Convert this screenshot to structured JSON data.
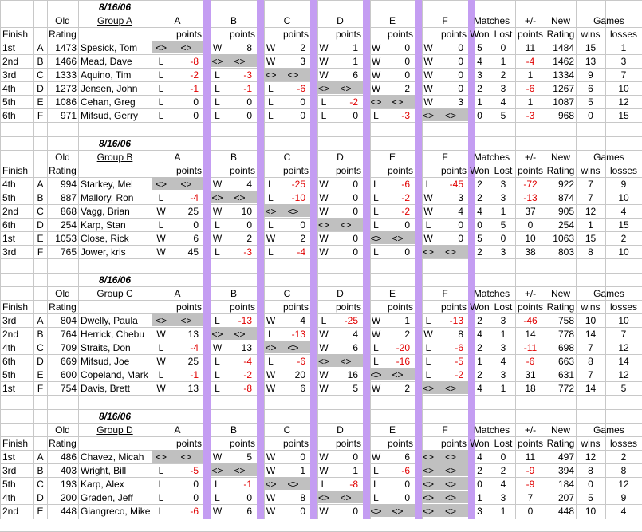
{
  "tables": [
    {
      "date": "8/16/06",
      "group": "Group A",
      "rows": [
        {
          "finish": "1st",
          "seed": "A",
          "rating": "1473",
          "name": "Spesick, Tom",
          "r": [
            "<>",
            "<>",
            "W",
            "8",
            "W",
            "2",
            "W",
            "1",
            "W",
            "0",
            "W",
            "0"
          ],
          "won": "5",
          "lost": "0",
          "pm": "11",
          "newr": "1484",
          "gw": "15",
          "gl": "1"
        },
        {
          "finish": "2nd",
          "seed": "B",
          "rating": "1466",
          "name": "Mead, Dave",
          "r": [
            "L",
            "-8",
            "<>",
            "<>",
            "W",
            "3",
            "W",
            "1",
            "W",
            "0",
            "W",
            "0"
          ],
          "won": "4",
          "lost": "1",
          "pm": "-4",
          "newr": "1462",
          "gw": "13",
          "gl": "3"
        },
        {
          "finish": "3rd",
          "seed": "C",
          "rating": "1333",
          "name": "Aquino, Tim",
          "r": [
            "L",
            "-2",
            "L",
            "-3",
            "<>",
            "<>",
            "W",
            "6",
            "W",
            "0",
            "W",
            "0"
          ],
          "won": "3",
          "lost": "2",
          "pm": "1",
          "newr": "1334",
          "gw": "9",
          "gl": "7"
        },
        {
          "finish": "4th",
          "seed": "D",
          "rating": "1273",
          "name": "Jensen, John",
          "r": [
            "L",
            "-1",
            "L",
            "-1",
            "L",
            "-6",
            "<>",
            "<>",
            "W",
            "2",
            "W",
            "0"
          ],
          "won": "2",
          "lost": "3",
          "pm": "-6",
          "newr": "1267",
          "gw": "6",
          "gl": "10"
        },
        {
          "finish": "5th",
          "seed": "E",
          "rating": "1086",
          "name": "Cehan, Greg",
          "r": [
            "L",
            "0",
            "L",
            "0",
            "L",
            "0",
            "L",
            "-2",
            "<>",
            "<>",
            "W",
            "3"
          ],
          "won": "1",
          "lost": "4",
          "pm": "1",
          "newr": "1087",
          "gw": "5",
          "gl": "12"
        },
        {
          "finish": "6th",
          "seed": "F",
          "rating": "971",
          "name": "Mifsud, Gerry",
          "r": [
            "L",
            "0",
            "L",
            "0",
            "L",
            "0",
            "L",
            "0",
            "L",
            "-3",
            "<>",
            "<>"
          ],
          "won": "0",
          "lost": "5",
          "pm": "-3",
          "newr": "968",
          "gw": "0",
          "gl": "15"
        }
      ]
    },
    {
      "date": "8/16/06",
      "group": "Group B",
      "rows": [
        {
          "finish": "4th",
          "seed": "A",
          "rating": "994",
          "name": "Starkey, Mel",
          "r": [
            "<>",
            "<>",
            "W",
            "4",
            "L",
            "-25",
            "W",
            "0",
            "L",
            "-6",
            "L",
            "-45"
          ],
          "won": "2",
          "lost": "3",
          "pm": "-72",
          "newr": "922",
          "gw": "7",
          "gl": "9"
        },
        {
          "finish": "5th",
          "seed": "B",
          "rating": "887",
          "name": "Mallory, Ron",
          "r": [
            "L",
            "-4",
            "<>",
            "<>",
            "L",
            "-10",
            "W",
            "0",
            "L",
            "-2",
            "W",
            "3"
          ],
          "won": "2",
          "lost": "3",
          "pm": "-13",
          "newr": "874",
          "gw": "7",
          "gl": "10"
        },
        {
          "finish": "2nd",
          "seed": "C",
          "rating": "868",
          "name": "Vagg, Brian",
          "r": [
            "W",
            "25",
            "W",
            "10",
            "<>",
            "<>",
            "W",
            "0",
            "L",
            "-2",
            "W",
            "4"
          ],
          "won": "4",
          "lost": "1",
          "pm": "37",
          "newr": "905",
          "gw": "12",
          "gl": "4"
        },
        {
          "finish": "6th",
          "seed": "D",
          "rating": "254",
          "name": "Karp, Stan",
          "r": [
            "L",
            "0",
            "L",
            "0",
            "L",
            "0",
            "<>",
            "<>",
            "L",
            "0",
            "L",
            "0"
          ],
          "won": "0",
          "lost": "5",
          "pm": "0",
          "newr": "254",
          "gw": "1",
          "gl": "15"
        },
        {
          "finish": "1st",
          "seed": "E",
          "rating": "1053",
          "name": "Close, Rick",
          "r": [
            "W",
            "6",
            "W",
            "2",
            "W",
            "2",
            "W",
            "0",
            "<>",
            "<>",
            "W",
            "0"
          ],
          "won": "5",
          "lost": "0",
          "pm": "10",
          "newr": "1063",
          "gw": "15",
          "gl": "2"
        },
        {
          "finish": "3rd",
          "seed": "F",
          "rating": "765",
          "name": "Jower, kris",
          "r": [
            "W",
            "45",
            "L",
            "-3",
            "L",
            "-4",
            "W",
            "0",
            "L",
            "0",
            "<>",
            "<>"
          ],
          "won": "2",
          "lost": "3",
          "pm": "38",
          "newr": "803",
          "gw": "8",
          "gl": "10"
        }
      ]
    },
    {
      "date": "8/16/06",
      "group": "Group C",
      "rows": [
        {
          "finish": "3rd",
          "seed": "A",
          "rating": "804",
          "name": "Dwelly, Paula",
          "r": [
            "<>",
            "<>",
            "L",
            "-13",
            "W",
            "4",
            "L",
            "-25",
            "W",
            "1",
            "L",
            "-13"
          ],
          "won": "2",
          "lost": "3",
          "pm": "-46",
          "newr": "758",
          "gw": "10",
          "gl": "10"
        },
        {
          "finish": "2nd",
          "seed": "B",
          "rating": "764",
          "name": "Herrick, Chebu",
          "r": [
            "W",
            "13",
            "<>",
            "<>",
            "L",
            "-13",
            "W",
            "4",
            "W",
            "2",
            "W",
            "8"
          ],
          "won": "4",
          "lost": "1",
          "pm": "14",
          "newr": "778",
          "gw": "14",
          "gl": "7"
        },
        {
          "finish": "4th",
          "seed": "C",
          "rating": "709",
          "name": "Straits, Don",
          "r": [
            "L",
            "-4",
            "W",
            "13",
            "<>",
            "<>",
            "W",
            "6",
            "L",
            "-20",
            "L",
            "-6"
          ],
          "won": "2",
          "lost": "3",
          "pm": "-11",
          "newr": "698",
          "gw": "7",
          "gl": "12"
        },
        {
          "finish": "6th",
          "seed": "D",
          "rating": "669",
          "name": "Mifsud, Joe",
          "r": [
            "W",
            "25",
            "L",
            "-4",
            "L",
            "-6",
            "<>",
            "<>",
            "L",
            "-16",
            "L",
            "-5"
          ],
          "won": "1",
          "lost": "4",
          "pm": "-6",
          "newr": "663",
          "gw": "8",
          "gl": "14"
        },
        {
          "finish": "5th",
          "seed": "E",
          "rating": "600",
          "name": "Copeland, Mark",
          "r": [
            "L",
            "-1",
            "L",
            "-2",
            "W",
            "20",
            "W",
            "16",
            "<>",
            "<>",
            "L",
            "-2"
          ],
          "won": "2",
          "lost": "3",
          "pm": "31",
          "newr": "631",
          "gw": "7",
          "gl": "12"
        },
        {
          "finish": "1st",
          "seed": "F",
          "rating": "754",
          "name": "Davis, Brett",
          "r": [
            "W",
            "13",
            "L",
            "-8",
            "W",
            "6",
            "W",
            "5",
            "W",
            "2",
            "<>",
            "<>"
          ],
          "won": "4",
          "lost": "1",
          "pm": "18",
          "newr": "772",
          "gw": "14",
          "gl": "5"
        }
      ]
    },
    {
      "date": "8/16/06",
      "group": "Group D",
      "rows": [
        {
          "finish": "1st",
          "seed": "A",
          "rating": "486",
          "name": "Chavez, Micah",
          "r": [
            "<>",
            "<>",
            "W",
            "5",
            "W",
            "0",
            "W",
            "0",
            "W",
            "6",
            "<>",
            "<>"
          ],
          "won": "4",
          "lost": "0",
          "pm": "11",
          "newr": "497",
          "gw": "12",
          "gl": "2"
        },
        {
          "finish": "3rd",
          "seed": "B",
          "rating": "403",
          "name": "Wright, Bill",
          "r": [
            "L",
            "-5",
            "<>",
            "<>",
            "W",
            "1",
            "W",
            "1",
            "L",
            "-6",
            "<>",
            "<>"
          ],
          "won": "2",
          "lost": "2",
          "pm": "-9",
          "newr": "394",
          "gw": "8",
          "gl": "8"
        },
        {
          "finish": "5th",
          "seed": "C",
          "rating": "193",
          "name": "Karp, Alex",
          "r": [
            "L",
            "0",
            "L",
            "-1",
            "<>",
            "<>",
            "L",
            "-8",
            "L",
            "0",
            "<>",
            "<>"
          ],
          "won": "0",
          "lost": "4",
          "pm": "-9",
          "newr": "184",
          "gw": "0",
          "gl": "12"
        },
        {
          "finish": "4th",
          "seed": "D",
          "rating": "200",
          "name": "Graden, Jeff",
          "r": [
            "L",
            "0",
            "L",
            "0",
            "W",
            "8",
            "<>",
            "<>",
            "L",
            "0",
            "<>",
            "<>"
          ],
          "won": "1",
          "lost": "3",
          "pm": "7",
          "newr": "207",
          "gw": "5",
          "gl": "9"
        },
        {
          "finish": "2nd",
          "seed": "E",
          "rating": "448",
          "name": "Giangreco, Mike",
          "r": [
            "L",
            "-6",
            "W",
            "6",
            "W",
            "0",
            "W",
            "0",
            "<>",
            "<>",
            "<>",
            "<>"
          ],
          "won": "3",
          "lost": "1",
          "pm": "0",
          "newr": "448",
          "gw": "10",
          "gl": "4"
        }
      ]
    }
  ],
  "headers": {
    "old": "Old",
    "finish": "Finish",
    "rating": "Rating",
    "points": "points",
    "opponents": [
      "A",
      "B",
      "C",
      "D",
      "E",
      "F"
    ],
    "matches": "Matches",
    "won": "Won",
    "lost": "Lost",
    "pm": "+/-",
    "pm_points": "points",
    "new": "New",
    "new_rating": "Rating",
    "games": "Games",
    "wins": "wins",
    "losses": "losses"
  }
}
